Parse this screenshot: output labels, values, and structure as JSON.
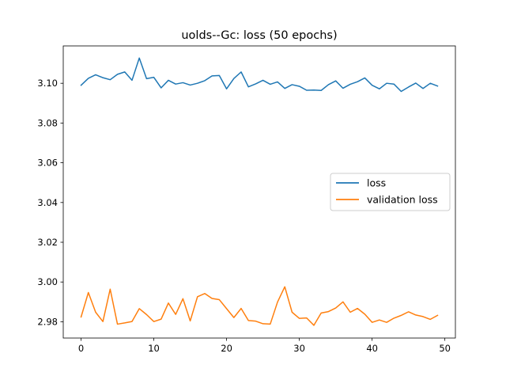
{
  "chart_data": {
    "type": "line",
    "title": "uolds--Gc: loss (50 epochs)",
    "xlabel": "",
    "ylabel": "",
    "xlim": [
      -2.45,
      51.45
    ],
    "ylim": [
      2.9718,
      3.1188
    ],
    "xticks": [
      0,
      10,
      20,
      30,
      40,
      50
    ],
    "xtick_labels": [
      "0",
      "10",
      "20",
      "30",
      "40",
      "50"
    ],
    "yticks": [
      2.98,
      3.0,
      3.02,
      3.04,
      3.06,
      3.08,
      3.1
    ],
    "ytick_labels": [
      "2.98",
      "3.00",
      "3.02",
      "3.04",
      "3.06",
      "3.08",
      "3.10"
    ],
    "grid": false,
    "legend_position": "center-right",
    "x": [
      0,
      1,
      2,
      3,
      4,
      5,
      6,
      7,
      8,
      9,
      10,
      11,
      12,
      13,
      14,
      15,
      16,
      17,
      18,
      19,
      20,
      21,
      22,
      23,
      24,
      25,
      26,
      27,
      28,
      29,
      30,
      31,
      32,
      33,
      34,
      35,
      36,
      37,
      38,
      39,
      40,
      41,
      42,
      43,
      44,
      45,
      46,
      47,
      48,
      49
    ],
    "series": [
      {
        "name": "loss",
        "color": "#1f77b4",
        "values": [
          3.099,
          3.1025,
          3.1043,
          3.1028,
          3.1018,
          3.1045,
          3.1057,
          3.1015,
          3.1127,
          3.1023,
          3.103,
          3.0977,
          3.1015,
          3.0996,
          3.1003,
          3.0991,
          3.1,
          3.1013,
          3.1037,
          3.1039,
          3.0972,
          3.1024,
          3.1057,
          3.0982,
          3.0997,
          3.1015,
          3.0995,
          3.1007,
          3.0974,
          3.0993,
          3.0985,
          3.0965,
          3.0966,
          3.0964,
          3.0993,
          3.1012,
          3.0975,
          3.0995,
          3.1008,
          3.1027,
          3.099,
          3.0972,
          3.1,
          3.0996,
          3.0959,
          3.0981,
          3.1001,
          3.0974,
          3.1,
          3.0986
        ]
      },
      {
        "name": "validation loss",
        "color": "#ff7f0e",
        "values": [
          2.9824,
          2.9947,
          2.9848,
          2.9801,
          2.9964,
          2.9788,
          2.9794,
          2.9801,
          2.9866,
          2.9836,
          2.9801,
          2.9813,
          2.9894,
          2.9837,
          2.9916,
          2.9804,
          2.9926,
          2.9942,
          2.9917,
          2.9911,
          2.9866,
          2.9821,
          2.9867,
          2.9806,
          2.9803,
          2.979,
          2.9788,
          2.9899,
          2.9976,
          2.9848,
          2.9817,
          2.9819,
          2.9782,
          2.9844,
          2.9851,
          2.9869,
          2.99,
          2.9848,
          2.9867,
          2.9838,
          2.9797,
          2.9809,
          2.9797,
          2.9818,
          2.9832,
          2.985,
          2.9834,
          2.9826,
          2.9812,
          2.9832
        ]
      }
    ]
  }
}
